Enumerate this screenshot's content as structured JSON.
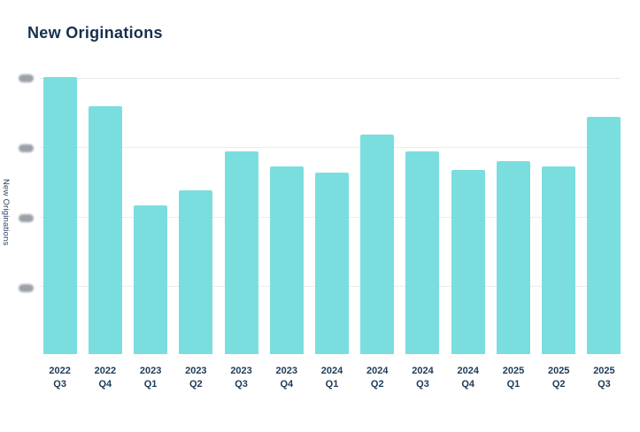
{
  "header": {
    "title": "New Originations"
  },
  "colors": {
    "bar": "#7ADEDE",
    "title_text": "#15304D",
    "axis_text": "#1C3A57",
    "y_axis_title_text": "#2C4763",
    "gridline": "#ECECEC",
    "redacted_tick": "#8B919B",
    "background": "#FFFFFF"
  },
  "chart_data": {
    "type": "bar",
    "title": "New Originations",
    "xlabel": "",
    "ylabel": "New Originations",
    "grid": true,
    "legend": false,
    "categories": [
      {
        "year": "2022",
        "quarter": "Q3"
      },
      {
        "year": "2022",
        "quarter": "Q4"
      },
      {
        "year": "2023",
        "quarter": "Q1"
      },
      {
        "year": "2023",
        "quarter": "Q2"
      },
      {
        "year": "2023",
        "quarter": "Q3"
      },
      {
        "year": "2023",
        "quarter": "Q4"
      },
      {
        "year": "2024",
        "quarter": "Q1"
      },
      {
        "year": "2024",
        "quarter": "Q2"
      },
      {
        "year": "2024",
        "quarter": "Q3"
      },
      {
        "year": "2024",
        "quarter": "Q4"
      },
      {
        "year": "2025",
        "quarter": "Q1"
      },
      {
        "year": "2025",
        "quarter": "Q2"
      },
      {
        "year": "2025",
        "quarter": "Q3"
      }
    ],
    "values_pct_of_plot_height": [
      97.8,
      87.5,
      52.5,
      57.8,
      71.6,
      66.3,
      64.1,
      77.5,
      71.6,
      65.0,
      68.1,
      66.3,
      83.8
    ],
    "values_relative_to_max_100": [
      100,
      89.5,
      53.7,
      59.1,
      73.2,
      67.7,
      65.5,
      79.2,
      73.2,
      66.5,
      69.6,
      67.7,
      85.6
    ],
    "y_axis": {
      "tick_labels_redacted": true,
      "tick_count": 4,
      "tick_positions_pct_from_plot_top": [
        2.8,
        27.3,
        52.0,
        76.6
      ]
    },
    "gridline_positions_pct_from_plot_top": [
      2.5,
      26.9,
      51.6,
      75.9
    ]
  }
}
